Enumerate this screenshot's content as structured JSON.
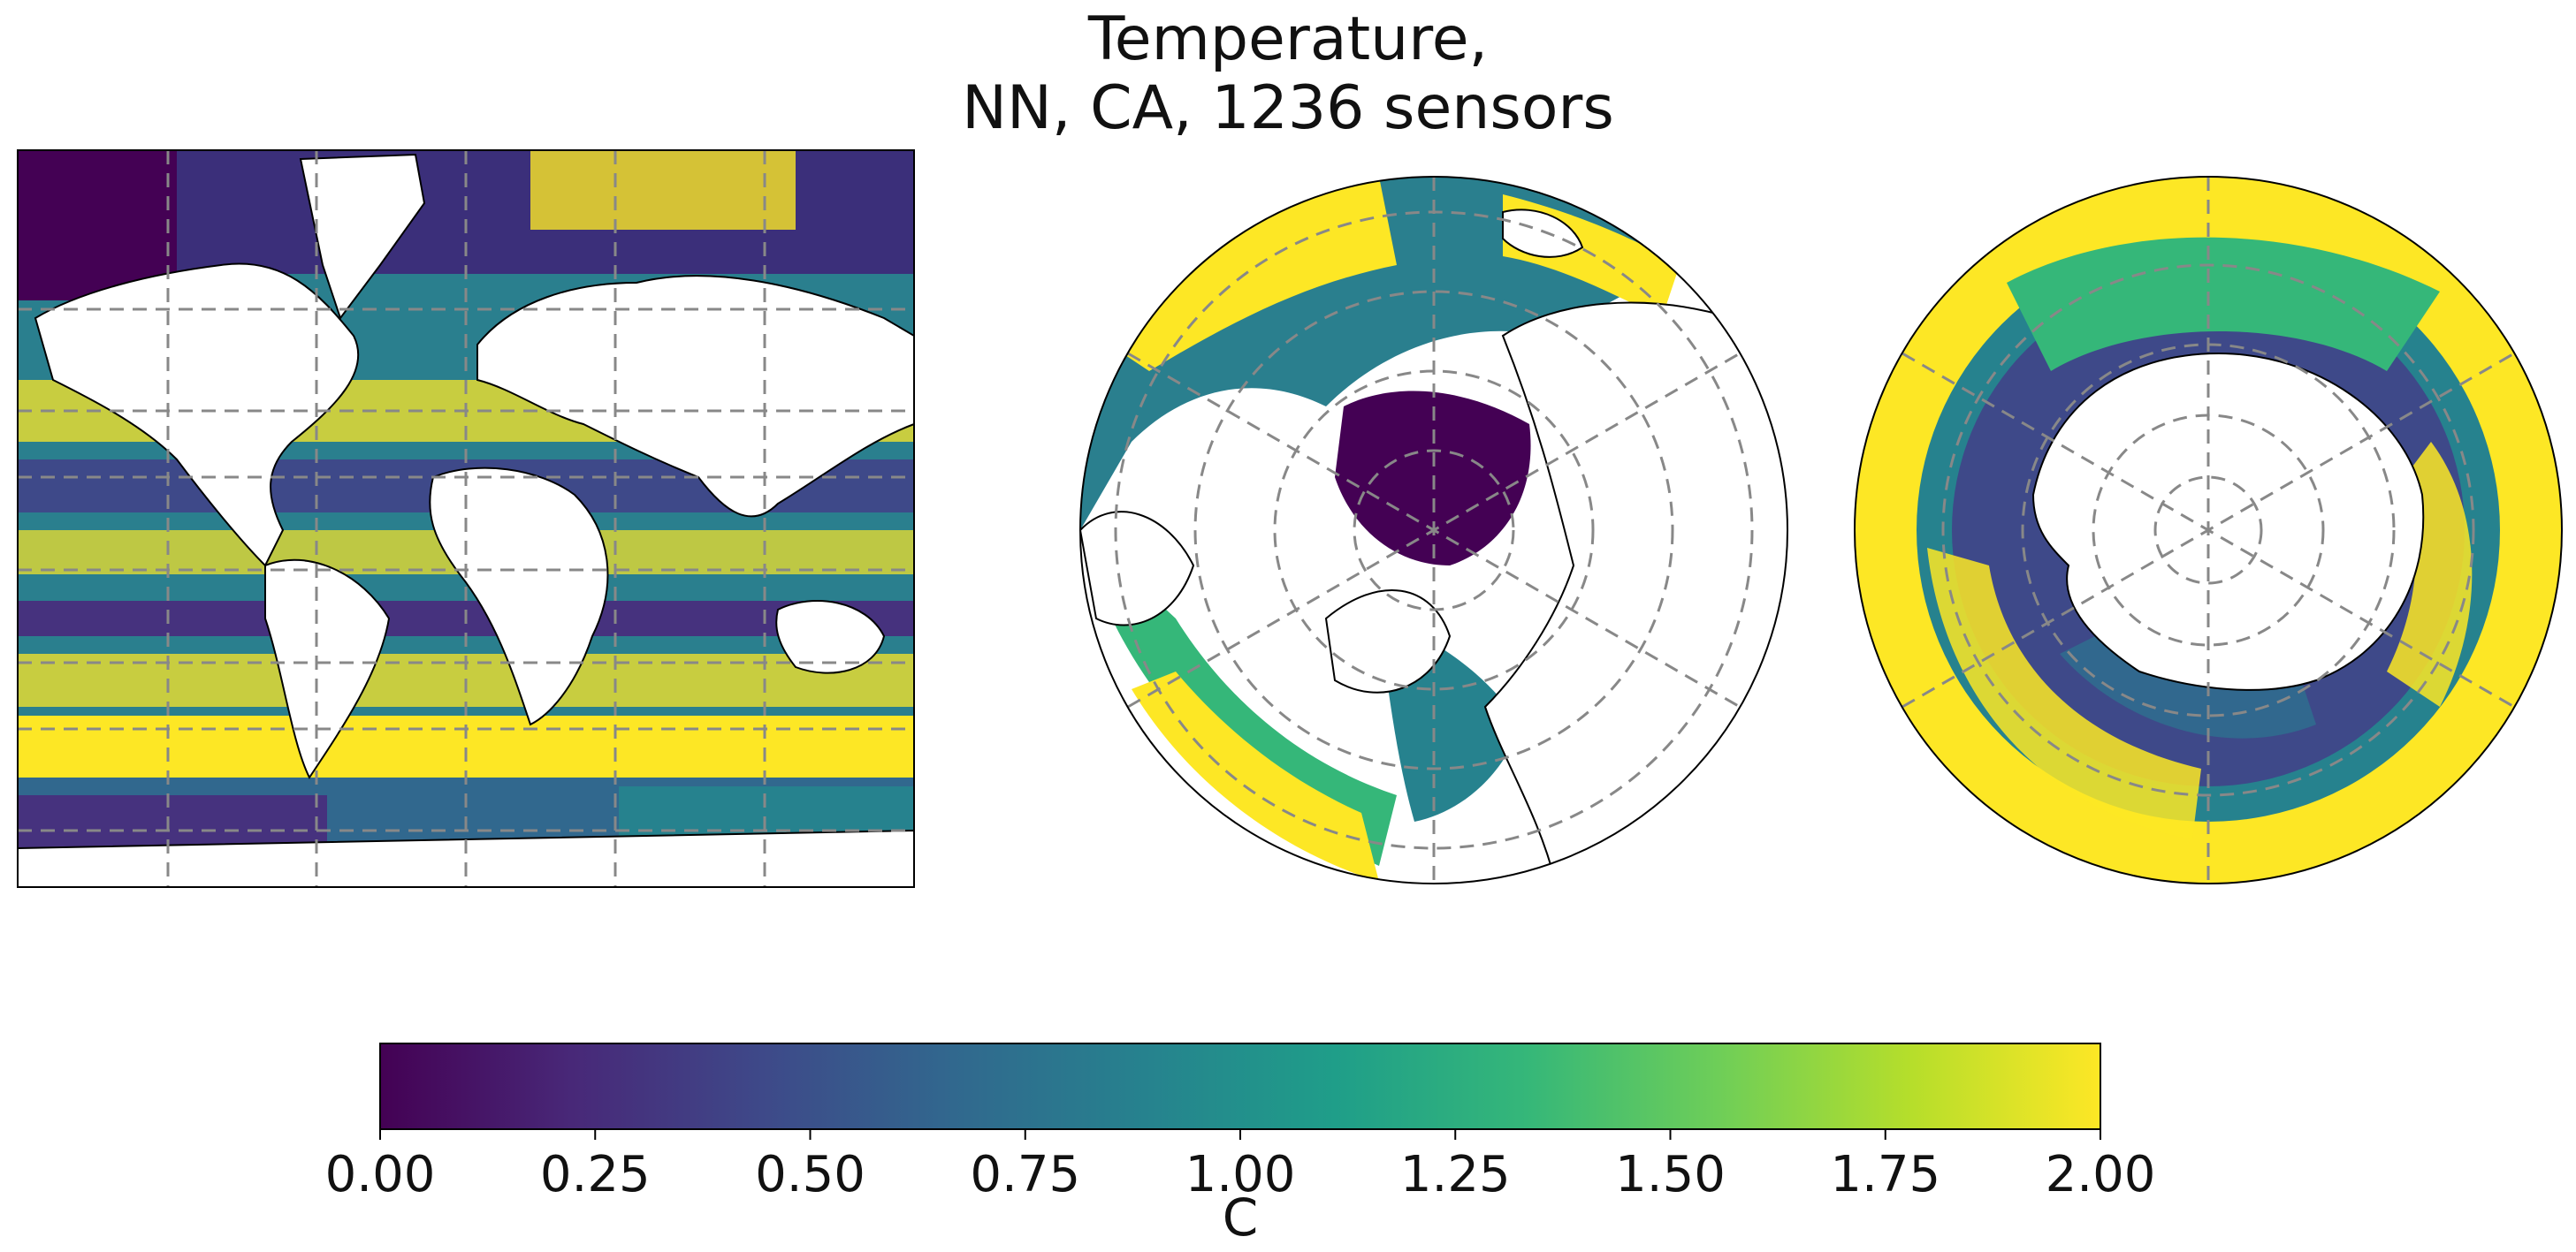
{
  "figure": {
    "title_lines": [
      "Temperature,",
      "NN, CA, 1236 sensors"
    ]
  },
  "panels": [
    {
      "name": "global-map",
      "projection": "mercator"
    },
    {
      "name": "north-polar-map",
      "projection": "north-polar-stereographic"
    },
    {
      "name": "south-polar-map",
      "projection": "south-polar-stereographic"
    }
  ],
  "colorbar": {
    "colormap": "viridis",
    "colormap_stops": [
      "#440154",
      "#482878",
      "#3e4989",
      "#31688e",
      "#26828e",
      "#1f9e89",
      "#35b779",
      "#6ece58",
      "#b5de2b",
      "#fde725"
    ],
    "range": [
      0.0,
      2.0
    ],
    "ticks": [
      "0.00",
      "0.25",
      "0.50",
      "0.75",
      "1.00",
      "1.25",
      "1.50",
      "1.75",
      "2.00"
    ],
    "label": "C"
  },
  "style": {
    "land_color": "#ffffff",
    "grid_color": "#888888",
    "coast_color": "#000000"
  }
}
